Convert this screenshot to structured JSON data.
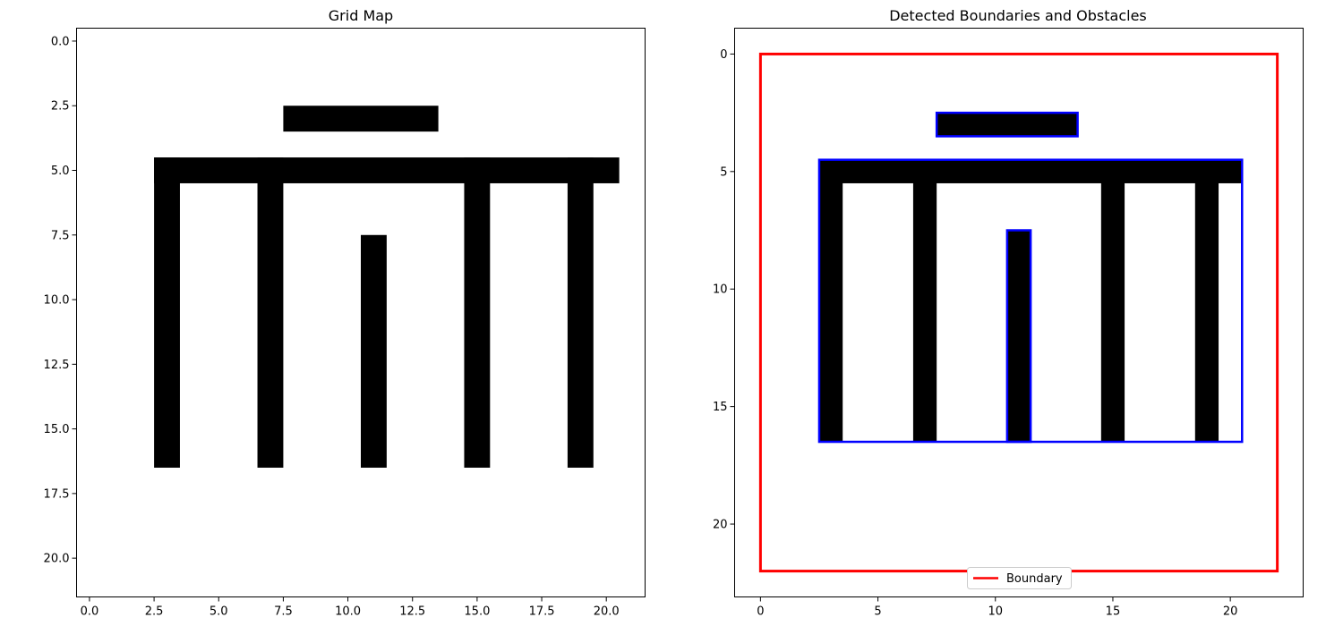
{
  "chart_data": [
    {
      "type": "heatmap",
      "title": "Grid Map",
      "xlim": [
        -0.5,
        21.5
      ],
      "ylim": [
        21.5,
        -0.5
      ],
      "y_inverted": true,
      "xticks": [
        "0.0",
        "2.5",
        "5.0",
        "7.5",
        "10.0",
        "12.5",
        "15.0",
        "17.5",
        "20.0"
      ],
      "yticks": [
        "0.0",
        "2.5",
        "5.0",
        "7.5",
        "10.0",
        "12.5",
        "15.0",
        "17.5",
        "20.0"
      ],
      "occupied_cells": [
        {
          "rows": [
            3,
            3
          ],
          "cols": [
            8,
            13
          ]
        },
        {
          "rows": [
            5,
            5
          ],
          "cols": [
            3,
            20
          ]
        },
        {
          "rows": [
            5,
            16
          ],
          "cols": [
            3,
            3
          ]
        },
        {
          "rows": [
            5,
            16
          ],
          "cols": [
            7,
            7
          ]
        },
        {
          "rows": [
            8,
            16
          ],
          "cols": [
            11,
            11
          ]
        },
        {
          "rows": [
            5,
            16
          ],
          "cols": [
            15,
            15
          ]
        },
        {
          "rows": [
            5,
            16
          ],
          "cols": [
            19,
            19
          ]
        }
      ],
      "colors": {
        "occupied": "#000000",
        "free": "#ffffff"
      }
    },
    {
      "type": "heatmap",
      "title": "Detected Boundaries and Obstacles",
      "xlim": [
        -1.1,
        23.1
      ],
      "ylim": [
        23.1,
        -1.1
      ],
      "y_inverted": true,
      "xticks": [
        "0",
        "5",
        "10",
        "15",
        "20"
      ],
      "yticks": [
        "0",
        "5",
        "10",
        "15",
        "20"
      ],
      "occupied_cells": [
        {
          "rows": [
            3,
            3
          ],
          "cols": [
            8,
            13
          ]
        },
        {
          "rows": [
            5,
            5
          ],
          "cols": [
            3,
            20
          ]
        },
        {
          "rows": [
            5,
            16
          ],
          "cols": [
            3,
            3
          ]
        },
        {
          "rows": [
            5,
            16
          ],
          "cols": [
            7,
            7
          ]
        },
        {
          "rows": [
            8,
            16
          ],
          "cols": [
            11,
            11
          ]
        },
        {
          "rows": [
            5,
            16
          ],
          "cols": [
            15,
            15
          ]
        },
        {
          "rows": [
            5,
            16
          ],
          "cols": [
            19,
            19
          ]
        }
      ],
      "boundary": {
        "x0": 0,
        "y0": 0,
        "x1": 22,
        "y1": 22,
        "color": "#ff0000"
      },
      "obstacle_boxes": [
        {
          "x0": 7.5,
          "y0": 2.5,
          "x1": 13.5,
          "y1": 3.5
        },
        {
          "x0": 2.5,
          "y0": 4.5,
          "x1": 20.5,
          "y1": 16.5
        },
        {
          "x0": 10.5,
          "y0": 7.5,
          "x1": 11.5,
          "y1": 16.5
        }
      ],
      "obstacle_color": "#0000ff",
      "legend": {
        "entries": [
          {
            "label": "Boundary",
            "color": "#ff0000"
          }
        ],
        "position": "lower-center"
      }
    }
  ]
}
